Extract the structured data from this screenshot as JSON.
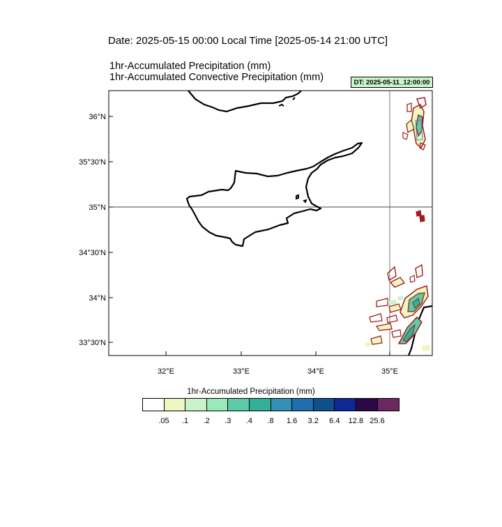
{
  "header": {
    "date_line": "Date: 2025-05-15  00:00 Local Time [2025-05-14  21:00 UTC]",
    "title_line_1": "1hr-Accumulated Precipitation   (mm)",
    "title_line_2": "1hr-Accumulated Convective Precipitation   (mm)",
    "dt_badge": "DT: 2025-05-11_12:00:00"
  },
  "map": {
    "region": "Cyprus and Eastern Mediterranean",
    "lon_labels": [
      "32°E",
      "33°E",
      "34°E",
      "35°E"
    ],
    "lat_labels": [
      "36°N",
      "35°30'N",
      "35°N",
      "34°30'N",
      "34°N",
      "33°30'N"
    ],
    "extent": {
      "lon_min": 31.25,
      "lon_max": 35.55,
      "lat_min": 33.38,
      "lat_max": 36.27
    }
  },
  "colorbar": {
    "title": "1hr-Accumulated Precipitation  (mm)",
    "labels": [
      ".05",
      ".1",
      ".2",
      ".3",
      ".4",
      ".8",
      "1.6",
      "3.2",
      "6.4",
      "12.8",
      "25.6"
    ],
    "colors": [
      "#ffffff",
      "#edf8c0",
      "#c9f3cd",
      "#99e9b9",
      "#5ecba8",
      "#33b09a",
      "#3391b8",
      "#1f6fb0",
      "#0f4f8c",
      "#0f2896",
      "#2c0846",
      "#6b2860"
    ]
  },
  "overlay_colors": {
    "convective_contour": "#a01e1e",
    "precip_light": "#edf8c0",
    "precip_mid": "#5ecba8"
  }
}
